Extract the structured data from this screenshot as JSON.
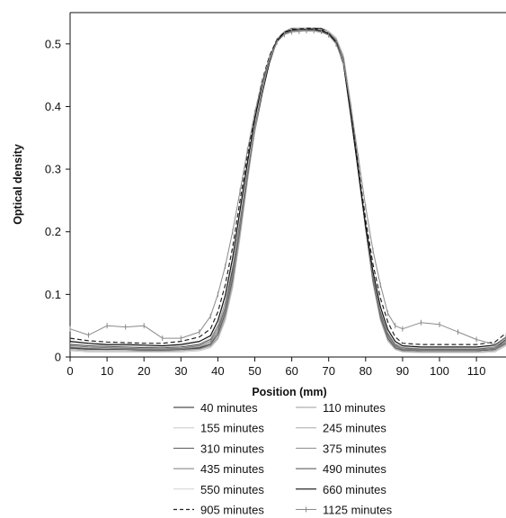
{
  "chart_data": {
    "type": "line",
    "title": "",
    "xlabel": "Position (mm)",
    "ylabel": "Optical density",
    "xlim": [
      0,
      118
    ],
    "ylim": [
      0,
      0.55
    ],
    "xticks": [
      0,
      10,
      20,
      30,
      40,
      50,
      60,
      70,
      80,
      90,
      100,
      110
    ],
    "yticks": [
      0,
      0.1,
      0.2,
      0.3,
      0.4,
      0.5
    ],
    "xtick_labels": [
      "0",
      "10",
      "20",
      "30",
      "40",
      "50",
      "60",
      "70",
      "80",
      "90",
      "100",
      "110"
    ],
    "ytick_labels": [
      "0",
      "0.1",
      "0.2",
      "0.3",
      "0.4",
      "0.5"
    ],
    "grid": false,
    "legend_position": "bottom",
    "x": [
      0,
      5,
      10,
      15,
      20,
      25,
      30,
      35,
      38,
      40,
      42,
      44,
      46,
      48,
      50,
      52,
      54,
      56,
      58,
      60,
      62,
      64,
      66,
      68,
      70,
      72,
      74,
      76,
      78,
      80,
      82,
      84,
      86,
      88,
      90,
      95,
      100,
      105,
      110,
      115,
      118
    ],
    "series": [
      {
        "name": "40 minutes",
        "color": "#222222",
        "style": "solid",
        "width": 1,
        "values": [
          0.015,
          0.013,
          0.012,
          0.013,
          0.012,
          0.012,
          0.012,
          0.015,
          0.022,
          0.04,
          0.08,
          0.14,
          0.215,
          0.29,
          0.36,
          0.42,
          0.47,
          0.505,
          0.52,
          0.525,
          0.525,
          0.525,
          0.525,
          0.525,
          0.52,
          0.505,
          0.47,
          0.39,
          0.3,
          0.21,
          0.13,
          0.07,
          0.035,
          0.018,
          0.012,
          0.01,
          0.01,
          0.01,
          0.01,
          0.012,
          0.03
        ]
      },
      {
        "name": "110 minutes",
        "color": "#9a9a9a",
        "style": "solid",
        "width": 1,
        "values": [
          0.012,
          0.01,
          0.01,
          0.01,
          0.01,
          0.01,
          0.01,
          0.013,
          0.018,
          0.032,
          0.065,
          0.12,
          0.2,
          0.285,
          0.365,
          0.43,
          0.478,
          0.508,
          0.52,
          0.524,
          0.525,
          0.525,
          0.524,
          0.523,
          0.52,
          0.51,
          0.48,
          0.4,
          0.305,
          0.205,
          0.12,
          0.062,
          0.028,
          0.014,
          0.01,
          0.008,
          0.008,
          0.008,
          0.008,
          0.01,
          0.02
        ]
      },
      {
        "name": "155 minutes",
        "color": "#c8c8c8",
        "style": "solid",
        "width": 1,
        "values": [
          0.01,
          0.008,
          0.008,
          0.008,
          0.008,
          0.008,
          0.008,
          0.01,
          0.015,
          0.028,
          0.058,
          0.11,
          0.19,
          0.28,
          0.36,
          0.428,
          0.477,
          0.507,
          0.52,
          0.524,
          0.525,
          0.525,
          0.524,
          0.523,
          0.52,
          0.51,
          0.482,
          0.405,
          0.31,
          0.21,
          0.118,
          0.058,
          0.025,
          0.012,
          0.008,
          0.007,
          0.007,
          0.007,
          0.007,
          0.008,
          0.018
        ]
      },
      {
        "name": "245 minutes",
        "color": "#a8a8a8",
        "style": "solid",
        "width": 1,
        "values": [
          0.012,
          0.01,
          0.01,
          0.01,
          0.009,
          0.009,
          0.01,
          0.012,
          0.017,
          0.03,
          0.062,
          0.115,
          0.195,
          0.282,
          0.362,
          0.428,
          0.476,
          0.506,
          0.519,
          0.523,
          0.524,
          0.524,
          0.524,
          0.522,
          0.518,
          0.508,
          0.478,
          0.4,
          0.305,
          0.205,
          0.118,
          0.06,
          0.027,
          0.013,
          0.009,
          0.008,
          0.008,
          0.008,
          0.008,
          0.01,
          0.02
        ]
      },
      {
        "name": "310 minutes",
        "color": "#555555",
        "style": "solid",
        "width": 1,
        "values": [
          0.014,
          0.012,
          0.012,
          0.012,
          0.011,
          0.011,
          0.012,
          0.014,
          0.02,
          0.036,
          0.07,
          0.125,
          0.205,
          0.288,
          0.366,
          0.43,
          0.476,
          0.505,
          0.518,
          0.522,
          0.523,
          0.523,
          0.523,
          0.521,
          0.517,
          0.506,
          0.475,
          0.395,
          0.3,
          0.205,
          0.122,
          0.064,
          0.03,
          0.015,
          0.011,
          0.01,
          0.01,
          0.01,
          0.01,
          0.012,
          0.022
        ]
      },
      {
        "name": "375 minutes",
        "color": "#8a8a8a",
        "style": "solid",
        "width": 1,
        "values": [
          0.016,
          0.014,
          0.014,
          0.013,
          0.012,
          0.012,
          0.013,
          0.016,
          0.022,
          0.04,
          0.075,
          0.13,
          0.21,
          0.292,
          0.368,
          0.43,
          0.475,
          0.504,
          0.517,
          0.521,
          0.522,
          0.522,
          0.522,
          0.52,
          0.516,
          0.505,
          0.472,
          0.39,
          0.298,
          0.205,
          0.125,
          0.068,
          0.033,
          0.017,
          0.012,
          0.011,
          0.011,
          0.011,
          0.011,
          0.013,
          0.024
        ]
      },
      {
        "name": "435 minutes",
        "color": "#7a7a7a",
        "style": "solid",
        "width": 1,
        "values": [
          0.018,
          0.016,
          0.015,
          0.014,
          0.013,
          0.013,
          0.014,
          0.018,
          0.025,
          0.045,
          0.08,
          0.135,
          0.215,
          0.295,
          0.37,
          0.43,
          0.474,
          0.503,
          0.516,
          0.52,
          0.521,
          0.521,
          0.521,
          0.519,
          0.515,
          0.503,
          0.47,
          0.388,
          0.297,
          0.205,
          0.127,
          0.07,
          0.035,
          0.019,
          0.013,
          0.012,
          0.012,
          0.012,
          0.012,
          0.014,
          0.026
        ]
      },
      {
        "name": "490 minutes",
        "color": "#4a4a4a",
        "style": "solid",
        "width": 1,
        "values": [
          0.02,
          0.018,
          0.017,
          0.016,
          0.015,
          0.015,
          0.016,
          0.02,
          0.028,
          0.05,
          0.088,
          0.145,
          0.222,
          0.3,
          0.373,
          0.432,
          0.475,
          0.503,
          0.516,
          0.52,
          0.521,
          0.521,
          0.521,
          0.519,
          0.514,
          0.502,
          0.468,
          0.385,
          0.296,
          0.207,
          0.13,
          0.074,
          0.038,
          0.021,
          0.015,
          0.013,
          0.013,
          0.013,
          0.013,
          0.016,
          0.028
        ]
      },
      {
        "name": "550 minutes",
        "color": "#d2d2d2",
        "style": "solid",
        "width": 1,
        "values": [
          0.022,
          0.02,
          0.019,
          0.018,
          0.017,
          0.016,
          0.018,
          0.022,
          0.03,
          0.052,
          0.09,
          0.148,
          0.225,
          0.302,
          0.374,
          0.433,
          0.476,
          0.504,
          0.517,
          0.521,
          0.522,
          0.522,
          0.522,
          0.52,
          0.515,
          0.503,
          0.47,
          0.388,
          0.3,
          0.21,
          0.133,
          0.076,
          0.04,
          0.022,
          0.016,
          0.014,
          0.014,
          0.014,
          0.014,
          0.017,
          0.03
        ]
      },
      {
        "name": "660 minutes",
        "color": "#111111",
        "style": "solid",
        "width": 1.2,
        "values": [
          0.025,
          0.022,
          0.02,
          0.02,
          0.019,
          0.018,
          0.02,
          0.025,
          0.034,
          0.058,
          0.098,
          0.158,
          0.235,
          0.31,
          0.38,
          0.437,
          0.478,
          0.505,
          0.518,
          0.522,
          0.523,
          0.523,
          0.523,
          0.521,
          0.516,
          0.503,
          0.468,
          0.385,
          0.298,
          0.21,
          0.136,
          0.08,
          0.044,
          0.025,
          0.018,
          0.016,
          0.016,
          0.016,
          0.016,
          0.019,
          0.032
        ]
      },
      {
        "name": "905 minutes",
        "color": "#222222",
        "style": "dash",
        "width": 1.2,
        "values": [
          0.03,
          0.026,
          0.024,
          0.023,
          0.022,
          0.022,
          0.025,
          0.032,
          0.045,
          0.072,
          0.115,
          0.175,
          0.25,
          0.322,
          0.388,
          0.442,
          0.481,
          0.507,
          0.519,
          0.523,
          0.524,
          0.525,
          0.525,
          0.523,
          0.517,
          0.503,
          0.468,
          0.39,
          0.305,
          0.22,
          0.148,
          0.094,
          0.056,
          0.032,
          0.022,
          0.02,
          0.02,
          0.02,
          0.02,
          0.024,
          0.038
        ]
      },
      {
        "name": "1125 minutes",
        "color": "#8a8a8a",
        "style": "cross",
        "width": 1,
        "values": [
          0.045,
          0.035,
          0.05,
          0.048,
          0.05,
          0.03,
          0.03,
          0.04,
          0.065,
          0.1,
          0.145,
          0.2,
          0.265,
          0.33,
          0.39,
          0.44,
          0.478,
          0.503,
          0.515,
          0.519,
          0.52,
          0.521,
          0.521,
          0.52,
          0.514,
          0.5,
          0.47,
          0.4,
          0.32,
          0.24,
          0.17,
          0.115,
          0.07,
          0.05,
          0.045,
          0.055,
          0.052,
          0.04,
          0.028,
          0.02,
          0.032
        ]
      }
    ]
  }
}
